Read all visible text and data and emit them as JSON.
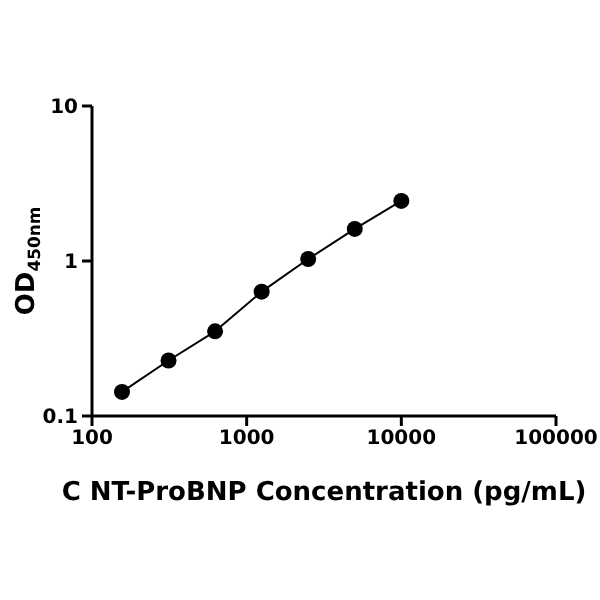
{
  "chart_data": {
    "type": "line",
    "xlabel": "C NT-ProBNP Concentration (pg/mL)",
    "ylabel": "OD$_{450nm}$",
    "x": [
      156.25,
      312.5,
      625,
      1250,
      2500,
      5000,
      10000
    ],
    "series": [
      {
        "color": "#000000",
        "values": [
          0.143,
          0.228,
          0.352,
          0.634,
          1.03,
          1.61,
          2.44
        ]
      }
    ],
    "xlim": [
      100,
      100000
    ],
    "xticks": [
      100,
      1000,
      10000,
      100000
    ],
    "ylim": [
      0.1,
      10
    ],
    "yticks": [
      0.1,
      1,
      10
    ],
    "log": "xy",
    "grid": false,
    "marker": "circle",
    "line_style": "solid"
  }
}
